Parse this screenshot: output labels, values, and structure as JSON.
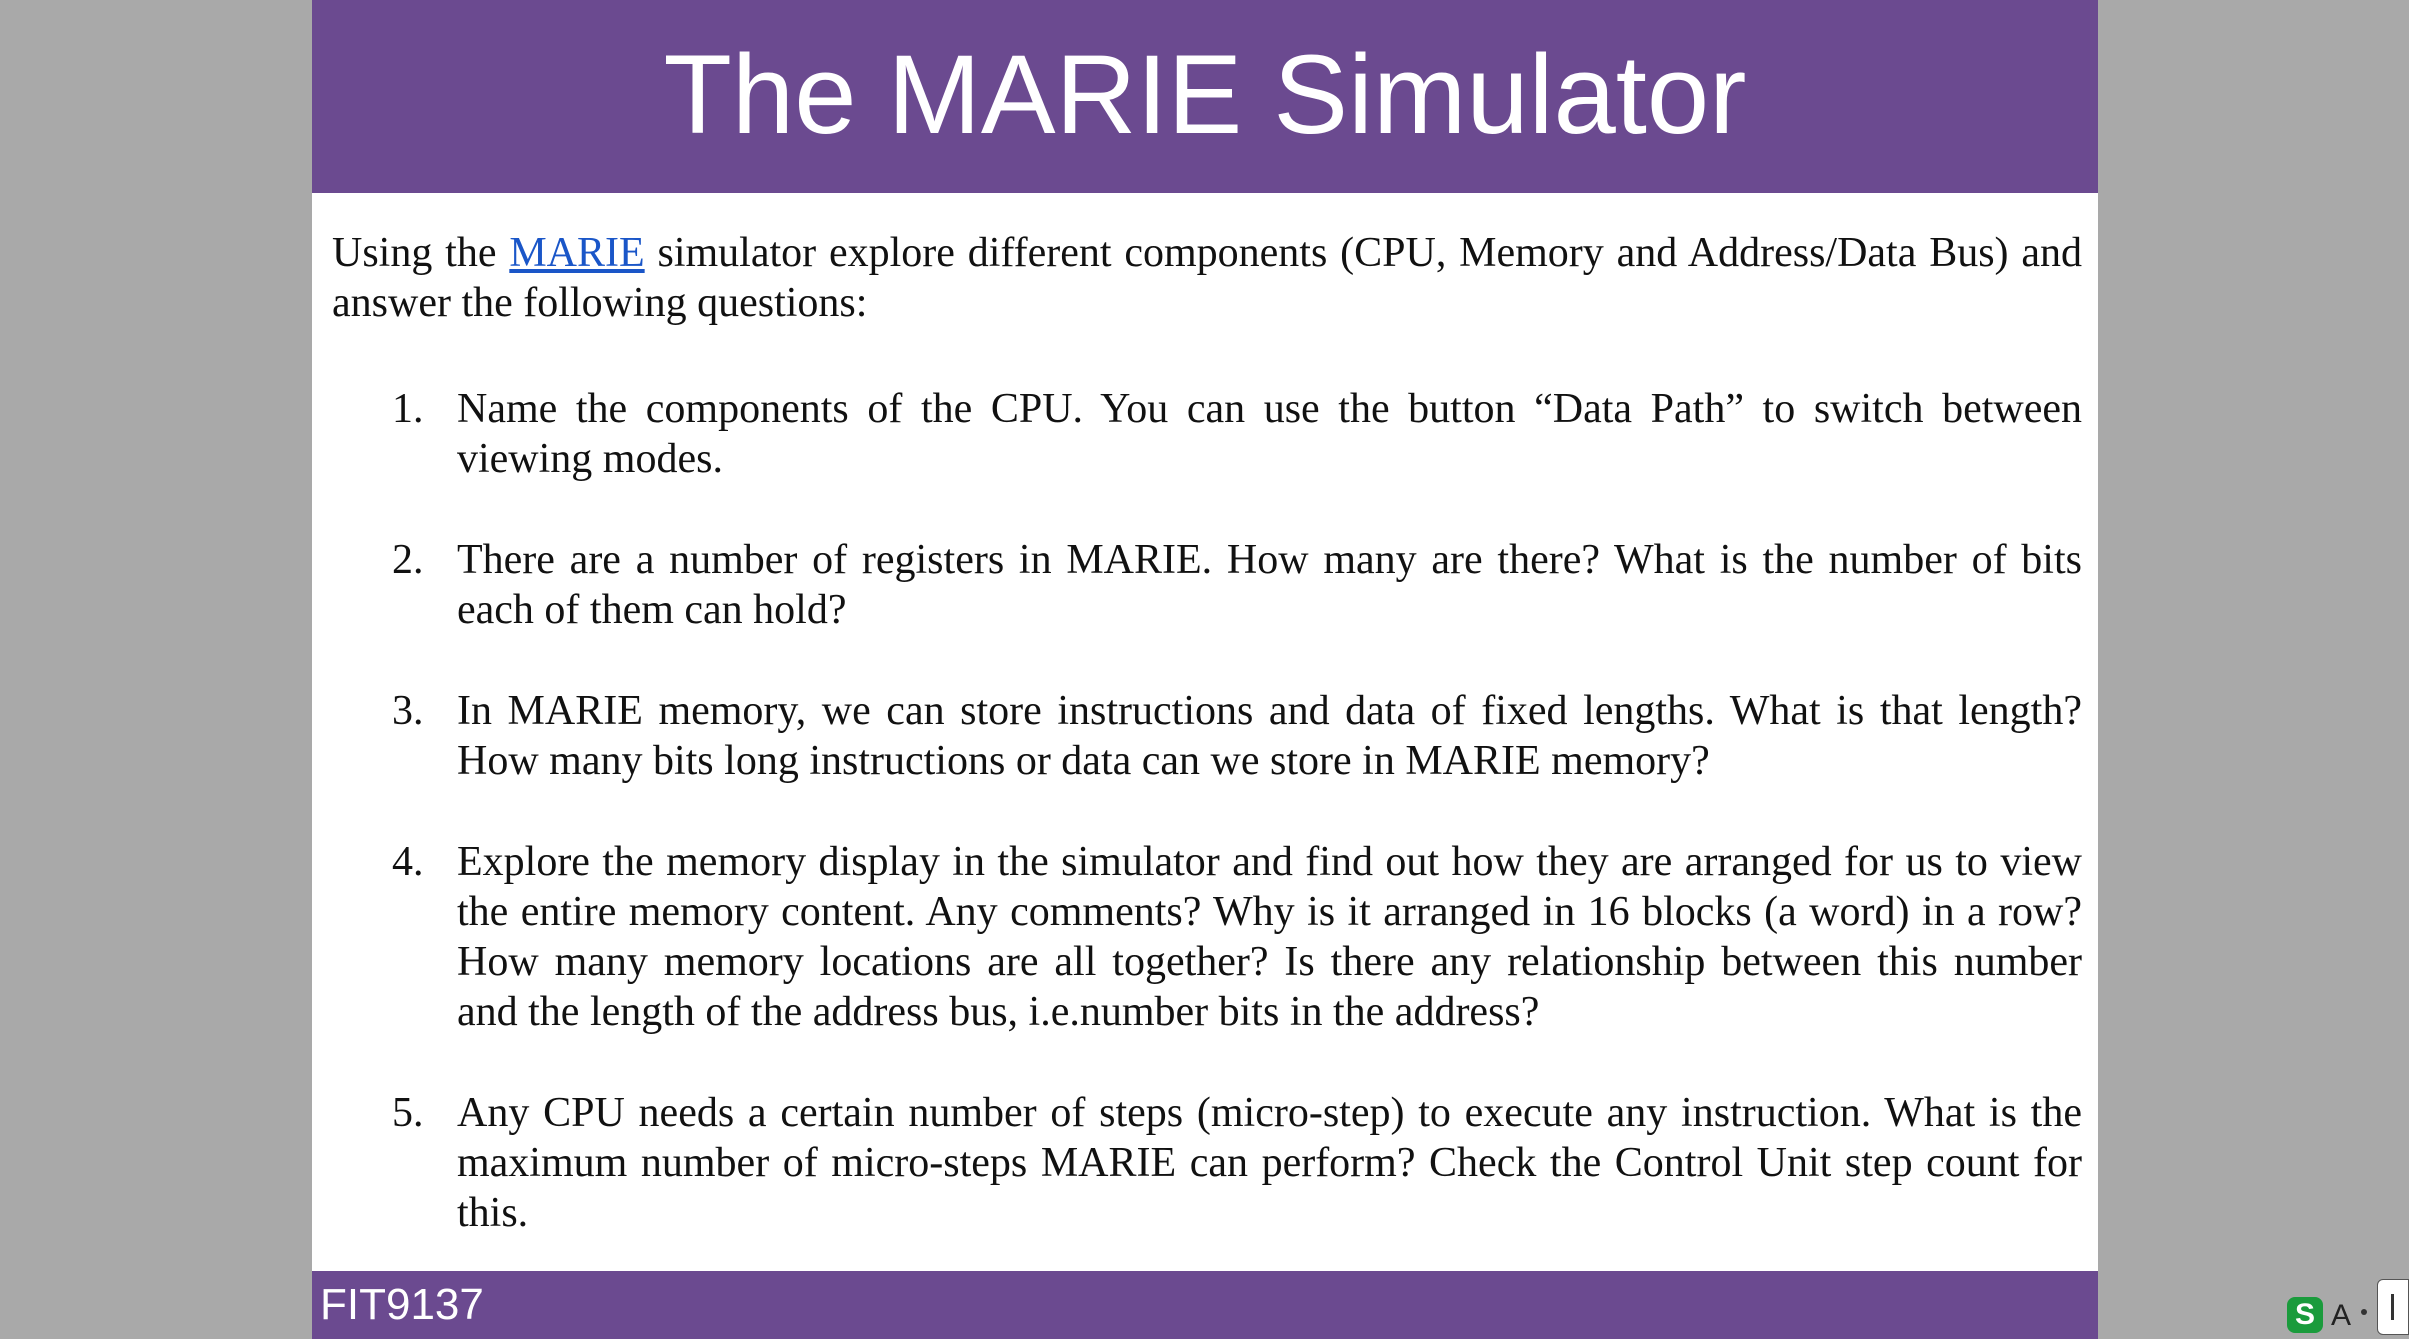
{
  "slide": {
    "title": "The MARIE Simulator",
    "intro_before_link": "Using the ",
    "intro_link": "MARIE",
    "intro_after_link": " simulator  explore different components (CPU, Memory and Address/Data Bus) and answer the following questions:",
    "questions": [
      {
        "num": "1.",
        "text": "Name the components of the CPU. You can use the button “Data Path” to switch between viewing modes."
      },
      {
        "num": "2.",
        "text": "There are a number of registers in MARIE. How many are there? What is the number of bits each of them can hold?"
      },
      {
        "num": "3.",
        "text": "In MARIE memory, we can store instructions and data of fixed lengths. What is that length? How many bits long instructions or data can we store in MARIE memory?"
      },
      {
        "num": "4.",
        "text": "Explore the memory display in the simulator and find out how they are arranged for us to view the entire memory content. Any comments? Why is it arranged in 16 blocks (a word) in a row? How many memory locations are all together? Is there any relationship between this number and the length of the address bus, i.e.number bits in the address?"
      },
      {
        "num": "5.",
        "text": "Any CPU needs a certain number of steps (micro-step) to execute any instruction. What is the maximum number of micro-steps MARIE can perform? Check the Control Unit step count for this."
      }
    ],
    "footer": "FIT9137"
  },
  "tray": {
    "s_glyph": "S",
    "a_glyph": "A",
    "s_icon": "sogou-input-icon",
    "s_color": "#1a9b3c"
  },
  "colors": {
    "header_bar": "#6b4a90",
    "footer_bar": "#6b4a90",
    "link": "#1a56c8",
    "background": "#a9a9a9"
  }
}
